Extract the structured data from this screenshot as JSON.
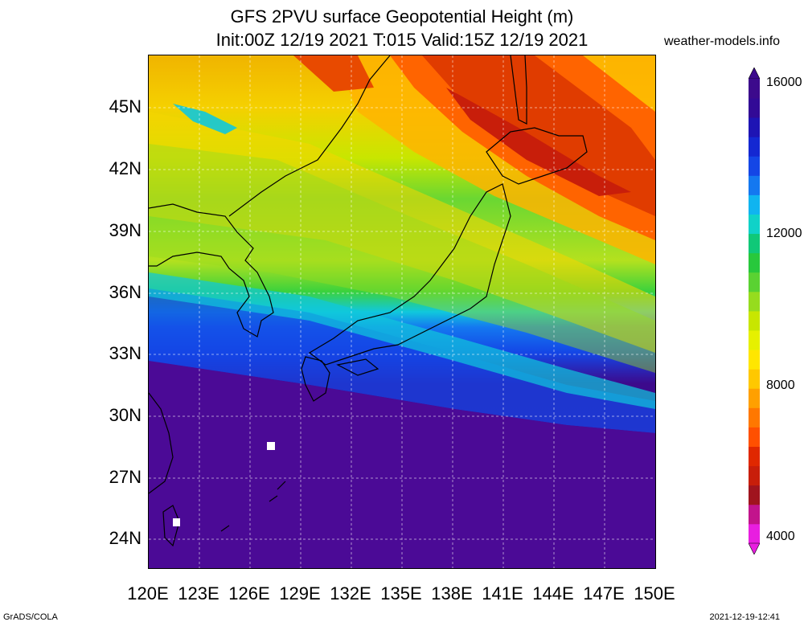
{
  "header": {
    "title_line1": "GFS 2PVU surface Geopotential Height (m)",
    "title_line2": "Init:00Z 12/19 2021 T:015 Valid:15Z 12/19 2021",
    "site": "weather-models.info"
  },
  "map": {
    "lat_ticks": [
      "45N",
      "42N",
      "39N",
      "36N",
      "33N",
      "30N",
      "27N",
      "24N"
    ],
    "lon_ticks": [
      "120E",
      "123E",
      "126E",
      "129E",
      "132E",
      "135E",
      "138E",
      "141E",
      "144E",
      "147E",
      "150E"
    ],
    "lat_range": [
      22.5,
      47.5
    ],
    "lon_range": [
      120,
      150
    ],
    "field_bands": [
      {
        "name": "far-north",
        "color": "#f0b400"
      },
      {
        "name": "north-yellow",
        "color": "#f5d000"
      },
      {
        "name": "jet-core",
        "color": "#e03c00"
      },
      {
        "name": "mid-yellowgreen",
        "color": "#c8e600"
      },
      {
        "name": "green",
        "color": "#3cd23c"
      },
      {
        "name": "cyan",
        "color": "#10c8dc"
      },
      {
        "name": "blue",
        "color": "#1446e6"
      },
      {
        "name": "south-purple",
        "color": "#4b0a96"
      }
    ]
  },
  "colorbar": {
    "labels": [
      "16000",
      "12000",
      "8000",
      "4000"
    ],
    "colors": [
      "#e81ee0",
      "#c2148c",
      "#a0141e",
      "#c81e0a",
      "#e02800",
      "#ff5000",
      "#ff7800",
      "#ffa000",
      "#ffc800",
      "#ffe600",
      "#e6f000",
      "#c8e600",
      "#96dc1e",
      "#5ad232",
      "#28c83c",
      "#10c878",
      "#10d2c8",
      "#10b4f0",
      "#1478f0",
      "#1446e6",
      "#1428d2",
      "#1e14b4",
      "#320a96",
      "#3c0a8c"
    ],
    "top_color": "#3c0a8c",
    "bottom_color": "#e81ee0"
  },
  "footer": {
    "left": "GrADS/COLA",
    "right": "2021-12-19-12:41"
  }
}
